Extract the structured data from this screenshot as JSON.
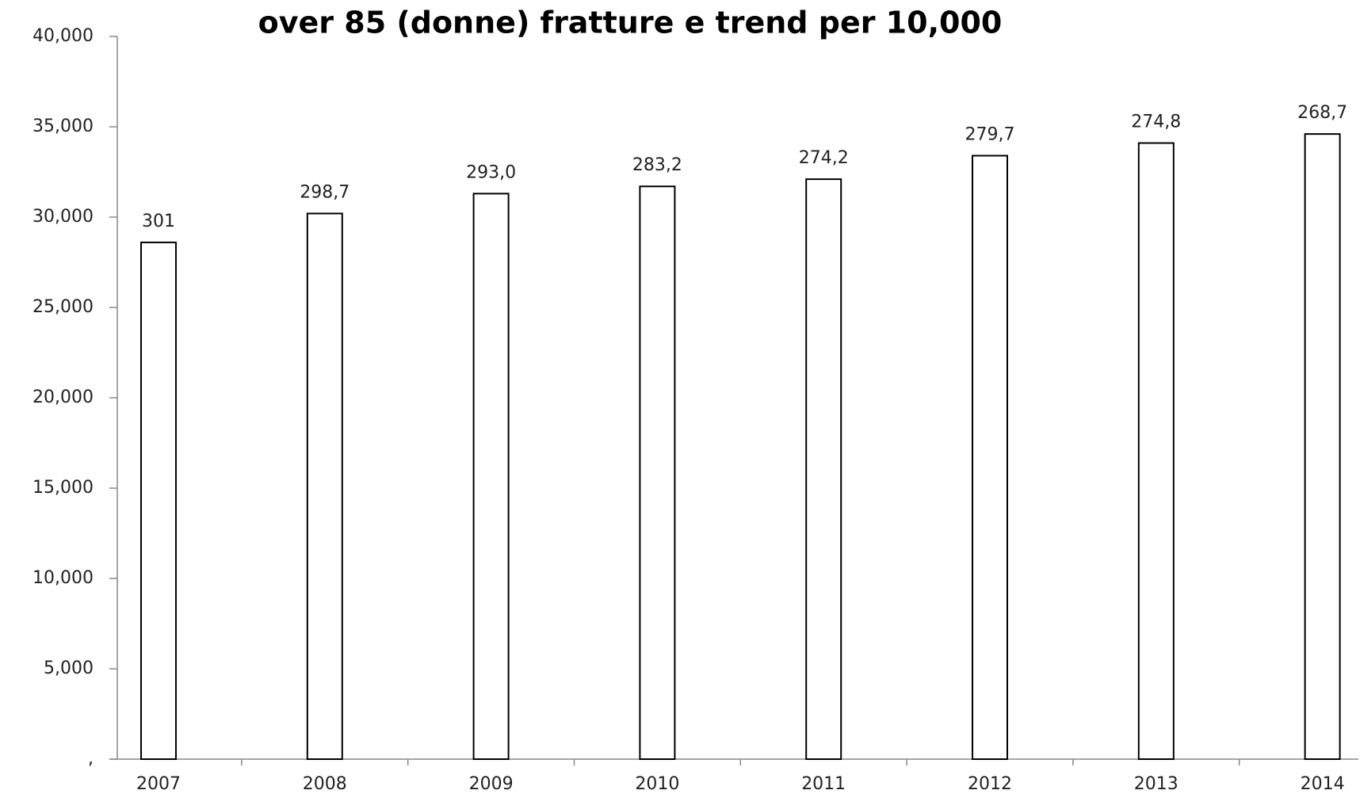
{
  "chart_data": {
    "type": "bar",
    "title": "over 85 (donne) fratture e trend per 10,000",
    "categories": [
      "2007",
      "2008",
      "2009",
      "2010",
      "2011",
      "2012",
      "2013",
      "2014"
    ],
    "values": [
      28600,
      30200,
      31300,
      31700,
      32100,
      33400,
      34100,
      34600
    ],
    "annotations": [
      "301",
      "298,7",
      "293,0",
      "283,2",
      "274,2",
      "279,7",
      "274,8",
      "268,7"
    ],
    "color": "#ffffff",
    "edge_color": "#000000",
    "ylim": [
      0,
      40000
    ],
    "yticks": [
      {
        "value": 0,
        "label": ","
      },
      {
        "value": 5000,
        "label": "5,000"
      },
      {
        "value": 10000,
        "label": "10,000"
      },
      {
        "value": 15000,
        "label": "15,000"
      },
      {
        "value": 20000,
        "label": "20,000"
      },
      {
        "value": 25000,
        "label": "25,000"
      },
      {
        "value": 30000,
        "label": "30,000"
      },
      {
        "value": 35000,
        "label": "35,000"
      },
      {
        "value": 40000,
        "label": "40,000"
      }
    ],
    "grid": false
  }
}
